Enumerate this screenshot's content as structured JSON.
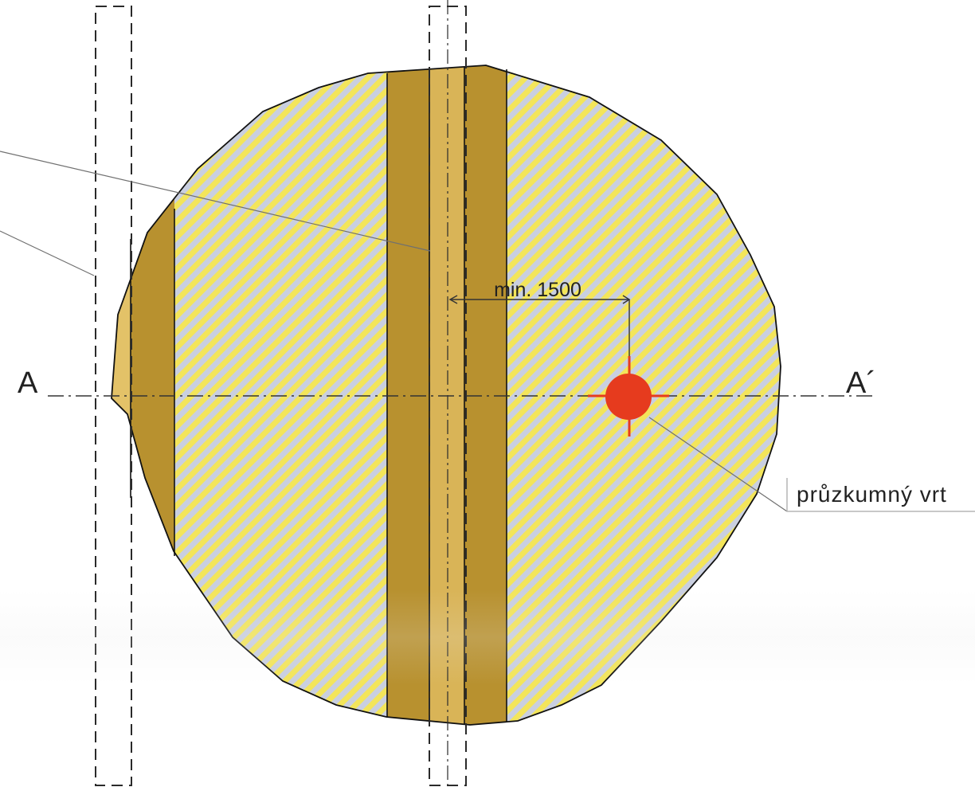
{
  "section_labels": {
    "left": "A",
    "right": "A´"
  },
  "dimension": {
    "label": "min. 1500"
  },
  "callout": {
    "label": "průzkumný vrt"
  },
  "colors": {
    "paper": "#ffffff",
    "outline": "#111111",
    "hatch_yellow": "#f3e55a",
    "hatch_blue": "#c9cfe0",
    "dark_band": "#b8912f",
    "light_band": "#d9b457",
    "edge_segment": "#e3c268",
    "borehole": "#e63b1e",
    "dash_line": "#2a2a2a",
    "leader": "#707070",
    "callout_box": "#b5b5b5"
  }
}
